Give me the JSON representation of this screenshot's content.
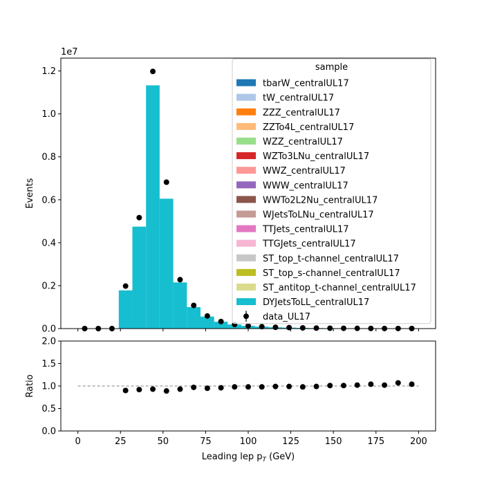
{
  "chart_data": [
    {
      "type": "bar",
      "subtype": "stacked-histogram",
      "xlim": [
        -10,
        210
      ],
      "ylim": [
        0,
        12600000
      ],
      "ylabel": "Events",
      "y_multiplier_label": "1e7",
      "yticks": [
        0,
        2000000,
        4000000,
        6000000,
        8000000,
        10000000,
        12000000
      ],
      "ytick_labels": [
        "0.0",
        "0.2",
        "0.4",
        "0.6",
        "0.8",
        "1.0",
        "1.2"
      ],
      "bin_edges": [
        0,
        8,
        16,
        24,
        32,
        40,
        48,
        56,
        64,
        72,
        80,
        88,
        96,
        104,
        112,
        120,
        128,
        136,
        144,
        152,
        160,
        168,
        176,
        184,
        192,
        200
      ],
      "stack_values": [
        0,
        0,
        0,
        1780000,
        4750000,
        11330000,
        6050000,
        2150000,
        1000000,
        560000,
        320000,
        190000,
        130000,
        90000,
        60000,
        45000,
        32000,
        24000,
        18000,
        14000,
        11000,
        8000,
        6000,
        5000,
        4000
      ],
      "legend_title": "sample",
      "legend_position": "top-right",
      "series": [
        {
          "name": "tbarW_centralUL17",
          "color": "#1f77b4"
        },
        {
          "name": "tW_centralUL17",
          "color": "#aec7e8"
        },
        {
          "name": "ZZZ_centralUL17",
          "color": "#ff7f0e"
        },
        {
          "name": "ZZTo4L_centralUL17",
          "color": "#ffbb78"
        },
        {
          "name": "WZZ_centralUL17",
          "color": "#98df8a"
        },
        {
          "name": "WZTo3LNu_centralUL17",
          "color": "#d62728"
        },
        {
          "name": "WWZ_centralUL17",
          "color": "#ff9896"
        },
        {
          "name": "WWW_centralUL17",
          "color": "#9467bd"
        },
        {
          "name": "WWTo2L2Nu_centralUL17",
          "color": "#8c564b"
        },
        {
          "name": "WJetsToLNu_centralUL17",
          "color": "#c49c94"
        },
        {
          "name": "TTJets_centralUL17",
          "color": "#e377c2"
        },
        {
          "name": "TTGJets_centralUL17",
          "color": "#f7b6d2"
        },
        {
          "name": "ST_top_t-channel_centralUL17",
          "color": "#c7c7c7"
        },
        {
          "name": "ST_top_s-channel_centralUL17",
          "color": "#bcbd22"
        },
        {
          "name": "ST_antitop_t-channel_centralUL17",
          "color": "#dbdb8d"
        },
        {
          "name": "DYJetsToLL_centralUL17",
          "color": "#17becf"
        }
      ],
      "data_series": {
        "name": "data_UL17",
        "x": [
          4,
          12,
          20,
          28,
          36,
          44,
          52,
          60,
          68,
          76,
          84,
          92,
          100,
          108,
          116,
          124,
          132,
          140,
          148,
          156,
          164,
          172,
          180,
          188,
          196
        ],
        "values": [
          0,
          0,
          0,
          1980000,
          5170000,
          11980000,
          6820000,
          2280000,
          1080000,
          590000,
          330000,
          190000,
          130000,
          90000,
          60000,
          45000,
          32000,
          24000,
          18000,
          14000,
          11000,
          8000,
          6000,
          5000,
          4000
        ]
      }
    },
    {
      "type": "scatter",
      "subtype": "ratio",
      "xlim": [
        -10,
        210
      ],
      "ylim": [
        0,
        2
      ],
      "ylabel": "Ratio",
      "xlabel_main": "Leading lep p",
      "xlabel_sub": "T",
      "xlabel_unit": " (GeV)",
      "xticks": [
        0,
        25,
        50,
        75,
        100,
        125,
        150,
        175,
        200
      ],
      "xtick_labels": [
        "0",
        "25",
        "50",
        "75",
        "100",
        "125",
        "150",
        "175",
        "200"
      ],
      "yticks": [
        0,
        0.5,
        1,
        1.5,
        2
      ],
      "ytick_labels": [
        "0.0",
        "0.5",
        "1.0",
        "1.5",
        "2.0"
      ],
      "reference_line": 1.0,
      "x": [
        28,
        36,
        44,
        52,
        60,
        68,
        76,
        84,
        92,
        100,
        108,
        116,
        124,
        132,
        140,
        148,
        156,
        164,
        172,
        180,
        188,
        196
      ],
      "values": [
        0.9,
        0.92,
        0.93,
        0.89,
        0.93,
        0.97,
        0.95,
        0.96,
        0.98,
        0.98,
        0.98,
        0.99,
        0.99,
        0.98,
        0.99,
        1.01,
        1.01,
        1.02,
        1.04,
        1.02,
        1.07,
        1.04
      ]
    }
  ]
}
